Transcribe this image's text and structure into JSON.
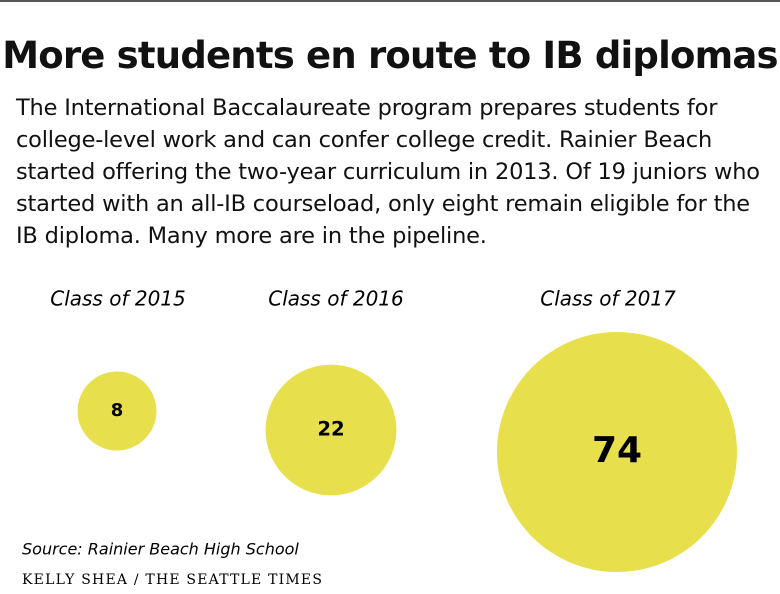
{
  "chart_data": {
    "type": "bubble",
    "title": "More students en route to IB diplomas",
    "subtitle": "The International Baccalaureate program prepares students for college-level work and can confer college credit. Rainier Beach started offering the two-year curriculum in 2013. Of 19 juniors who started with an all-IB courseload, only eight remain eligible for the IB diploma. Many more are in the pipeline.",
    "categories": [
      "Class of 2015",
      "Class of 2016",
      "Class of 2017"
    ],
    "values": [
      8,
      22,
      74
    ],
    "color": "#e8df4c",
    "source": "Source: Rainier Beach High School",
    "credit": "KELLY SHEA / THE SEATTLE TIMES"
  }
}
